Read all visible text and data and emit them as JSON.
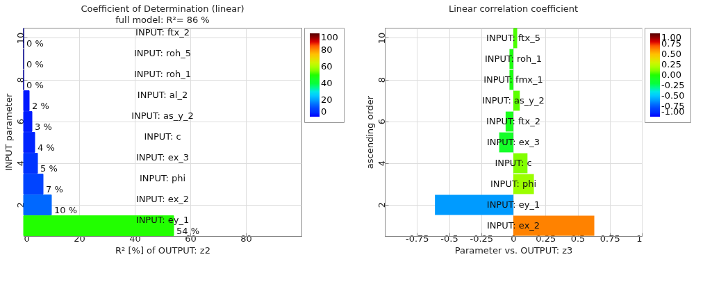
{
  "chart_data": [
    {
      "type": "bar",
      "orientation": "horizontal",
      "title": "Coefficient of Determination (linear)",
      "subtitle": "full model: R²= 86 %",
      "xlabel": "R² [%] of OUTPUT: z2",
      "ylabel": "INPUT parameter",
      "categories": [
        "10",
        null,
        "8",
        null,
        "6",
        null,
        "4",
        null,
        "2",
        null
      ],
      "values": [
        0,
        0,
        0,
        2,
        3,
        4,
        5,
        7,
        10,
        54
      ],
      "colors": [
        "#000080",
        "#000090",
        "#0000a0",
        "#0018ff",
        "#001cff",
        "#0024ff",
        "#0034ff",
        "#0044ff",
        "#0068ff",
        "#22ff00"
      ],
      "value_labels": [
        "0 %",
        "0 %",
        "0 %",
        "2 %",
        "3 %",
        "4 %",
        "5 %",
        "7 %",
        "10 %",
        "54 %"
      ],
      "annotations": [
        "INPUT: ftx_2",
        "INPUT: roh_5",
        "INPUT: roh_1",
        "INPUT: al_2",
        "INPUT: as_y_2",
        "INPUT: c",
        "INPUT: ex_3",
        "INPUT: phi",
        "INPUT: ex_2",
        "INPUT: ey_1"
      ],
      "xlim": [
        0,
        100
      ],
      "xticks": [
        0,
        20,
        40,
        60,
        80
      ],
      "clim": [
        0,
        100
      ],
      "cticks": [
        0,
        20,
        40,
        60,
        80,
        100
      ],
      "grid": true
    },
    {
      "type": "bar",
      "orientation": "horizontal",
      "title": "Linear correlation coefficient",
      "xlabel": "Parameter vs. OUTPUT: z3",
      "ylabel": "ascending order",
      "categories": [
        "10",
        null,
        "8",
        null,
        "6",
        null,
        "4",
        null,
        "2",
        null
      ],
      "values": [
        0.03,
        -0.03,
        -0.03,
        0.05,
        -0.06,
        -0.11,
        0.11,
        0.16,
        -0.61,
        0.63
      ],
      "cvalues": [
        0.03,
        -0.03,
        -0.03,
        0.05,
        -0.06,
        -0.11,
        0.11,
        0.16,
        -0.61,
        0.63
      ],
      "annotations": [
        "INPUT: ftx_5",
        "INPUT: roh_1",
        "INPUT: fmx_1",
        "INPUT: as_y_2",
        "INPUT: ftx_2",
        "INPUT: ex_3",
        "INPUT: c",
        "INPUT: phi",
        "INPUT: ey_1",
        "INPUT: ex_2"
      ],
      "xlim": [
        -1,
        1
      ],
      "xticks": [
        -0.75,
        -0.5,
        -0.25,
        0,
        0.25,
        0.5,
        0.75,
        1
      ],
      "clim": [
        -1,
        1
      ],
      "cticks": [
        {
          "value": -1,
          "label": "-1.00"
        },
        {
          "value": -0.75,
          "label": "-0.75"
        },
        {
          "value": -0.5,
          "label": "-0.50"
        },
        {
          "value": -0.25,
          "label": "-0.25"
        },
        {
          "value": 0,
          "label": "0.00"
        },
        {
          "value": 0.25,
          "label": "0.25"
        },
        {
          "value": 0.5,
          "label": "0.50"
        },
        {
          "value": 0.75,
          "label": "0.75"
        },
        {
          "value": 1,
          "label": "1.00"
        }
      ],
      "grid": true
    }
  ]
}
